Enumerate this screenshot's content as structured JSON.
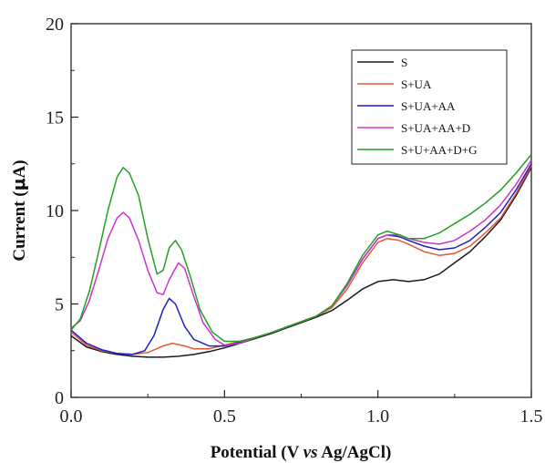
{
  "chart_data": {
    "type": "line",
    "xlabel_parts": [
      "Potential (V ",
      "vs",
      " Ag/AgCl)"
    ],
    "ylabel_parts": [
      "Current (",
      "μ",
      "A)"
    ],
    "xlim": [
      0,
      1.5
    ],
    "ylim": [
      0,
      20
    ],
    "xticks": [
      0.0,
      0.5,
      1.0,
      1.5
    ],
    "xtick_labels": [
      "0.0",
      "0.5",
      "1.0",
      "1.5"
    ],
    "yticks": [
      0,
      5,
      10,
      15,
      20
    ],
    "ytick_labels": [
      "0",
      "5",
      "10",
      "15",
      "20"
    ],
    "grid": false,
    "legend_position": "top-right",
    "series": [
      {
        "name": "S",
        "color": "#1a1a1a",
        "points": [
          [
            0,
            3.3
          ],
          [
            0.05,
            2.7
          ],
          [
            0.1,
            2.45
          ],
          [
            0.15,
            2.3
          ],
          [
            0.2,
            2.2
          ],
          [
            0.25,
            2.15
          ],
          [
            0.3,
            2.15
          ],
          [
            0.35,
            2.2
          ],
          [
            0.4,
            2.3
          ],
          [
            0.45,
            2.45
          ],
          [
            0.5,
            2.65
          ],
          [
            0.55,
            2.9
          ],
          [
            0.6,
            3.15
          ],
          [
            0.65,
            3.4
          ],
          [
            0.7,
            3.7
          ],
          [
            0.75,
            4.0
          ],
          [
            0.8,
            4.3
          ],
          [
            0.85,
            4.65
          ],
          [
            0.9,
            5.2
          ],
          [
            0.95,
            5.8
          ],
          [
            1.0,
            6.2
          ],
          [
            1.05,
            6.3
          ],
          [
            1.1,
            6.2
          ],
          [
            1.15,
            6.3
          ],
          [
            1.2,
            6.6
          ],
          [
            1.25,
            7.2
          ],
          [
            1.3,
            7.8
          ],
          [
            1.35,
            8.6
          ],
          [
            1.4,
            9.5
          ],
          [
            1.45,
            10.8
          ],
          [
            1.5,
            12.3
          ]
        ]
      },
      {
        "name": "S+UA",
        "color": "#e05a3a",
        "points": [
          [
            0,
            3.5
          ],
          [
            0.05,
            2.8
          ],
          [
            0.1,
            2.5
          ],
          [
            0.15,
            2.35
          ],
          [
            0.2,
            2.3
          ],
          [
            0.25,
            2.4
          ],
          [
            0.3,
            2.75
          ],
          [
            0.33,
            2.9
          ],
          [
            0.37,
            2.75
          ],
          [
            0.4,
            2.6
          ],
          [
            0.45,
            2.6
          ],
          [
            0.5,
            2.8
          ],
          [
            0.55,
            3.0
          ],
          [
            0.6,
            3.2
          ],
          [
            0.65,
            3.45
          ],
          [
            0.7,
            3.75
          ],
          [
            0.75,
            4.05
          ],
          [
            0.8,
            4.35
          ],
          [
            0.85,
            4.8
          ],
          [
            0.9,
            5.8
          ],
          [
            0.95,
            7.2
          ],
          [
            1.0,
            8.3
          ],
          [
            1.03,
            8.5
          ],
          [
            1.07,
            8.4
          ],
          [
            1.1,
            8.2
          ],
          [
            1.15,
            7.8
          ],
          [
            1.2,
            7.6
          ],
          [
            1.25,
            7.7
          ],
          [
            1.3,
            8.1
          ],
          [
            1.35,
            8.8
          ],
          [
            1.4,
            9.6
          ],
          [
            1.45,
            10.9
          ],
          [
            1.5,
            12.4
          ]
        ]
      },
      {
        "name": "S+UA+AA",
        "color": "#2020c0",
        "points": [
          [
            0,
            3.6
          ],
          [
            0.05,
            2.9
          ],
          [
            0.1,
            2.55
          ],
          [
            0.15,
            2.35
          ],
          [
            0.2,
            2.3
          ],
          [
            0.24,
            2.5
          ],
          [
            0.27,
            3.3
          ],
          [
            0.3,
            4.7
          ],
          [
            0.32,
            5.3
          ],
          [
            0.34,
            5.0
          ],
          [
            0.37,
            3.8
          ],
          [
            0.4,
            3.1
          ],
          [
            0.45,
            2.75
          ],
          [
            0.5,
            2.75
          ],
          [
            0.55,
            2.95
          ],
          [
            0.6,
            3.2
          ],
          [
            0.65,
            3.45
          ],
          [
            0.7,
            3.75
          ],
          [
            0.75,
            4.05
          ],
          [
            0.8,
            4.35
          ],
          [
            0.85,
            4.9
          ],
          [
            0.9,
            6.0
          ],
          [
            0.95,
            7.4
          ],
          [
            1.0,
            8.5
          ],
          [
            1.03,
            8.7
          ],
          [
            1.07,
            8.6
          ],
          [
            1.1,
            8.4
          ],
          [
            1.15,
            8.1
          ],
          [
            1.2,
            7.9
          ],
          [
            1.25,
            8.0
          ],
          [
            1.3,
            8.4
          ],
          [
            1.35,
            9.1
          ],
          [
            1.4,
            9.9
          ],
          [
            1.45,
            11.1
          ],
          [
            1.5,
            12.5
          ]
        ]
      },
      {
        "name": "S+UA+AA+D",
        "color": "#cc33cc",
        "points": [
          [
            0,
            3.7
          ],
          [
            0.03,
            4.1
          ],
          [
            0.06,
            5.2
          ],
          [
            0.09,
            6.8
          ],
          [
            0.12,
            8.5
          ],
          [
            0.15,
            9.6
          ],
          [
            0.17,
            9.9
          ],
          [
            0.19,
            9.6
          ],
          [
            0.22,
            8.4
          ],
          [
            0.25,
            6.8
          ],
          [
            0.28,
            5.6
          ],
          [
            0.3,
            5.5
          ],
          [
            0.32,
            6.3
          ],
          [
            0.35,
            7.2
          ],
          [
            0.37,
            6.9
          ],
          [
            0.4,
            5.4
          ],
          [
            0.43,
            4.0
          ],
          [
            0.47,
            3.1
          ],
          [
            0.5,
            2.8
          ],
          [
            0.55,
            2.9
          ],
          [
            0.6,
            3.2
          ],
          [
            0.65,
            3.45
          ],
          [
            0.7,
            3.75
          ],
          [
            0.75,
            4.05
          ],
          [
            0.8,
            4.35
          ],
          [
            0.85,
            4.9
          ],
          [
            0.9,
            6.0
          ],
          [
            0.95,
            7.4
          ],
          [
            1.0,
            8.5
          ],
          [
            1.03,
            8.7
          ],
          [
            1.07,
            8.7
          ],
          [
            1.1,
            8.5
          ],
          [
            1.15,
            8.3
          ],
          [
            1.2,
            8.2
          ],
          [
            1.25,
            8.4
          ],
          [
            1.3,
            8.9
          ],
          [
            1.35,
            9.5
          ],
          [
            1.4,
            10.3
          ],
          [
            1.45,
            11.4
          ],
          [
            1.5,
            12.7
          ]
        ]
      },
      {
        "name": "S+U+AA+D+G",
        "color": "#22a022",
        "points": [
          [
            0,
            3.6
          ],
          [
            0.03,
            4.2
          ],
          [
            0.06,
            5.7
          ],
          [
            0.09,
            7.8
          ],
          [
            0.12,
            10.0
          ],
          [
            0.15,
            11.8
          ],
          [
            0.17,
            12.3
          ],
          [
            0.19,
            12.0
          ],
          [
            0.22,
            10.8
          ],
          [
            0.25,
            8.5
          ],
          [
            0.28,
            6.6
          ],
          [
            0.3,
            6.8
          ],
          [
            0.32,
            8.0
          ],
          [
            0.34,
            8.4
          ],
          [
            0.36,
            7.9
          ],
          [
            0.39,
            6.4
          ],
          [
            0.42,
            4.7
          ],
          [
            0.46,
            3.5
          ],
          [
            0.5,
            3.0
          ],
          [
            0.55,
            3.0
          ],
          [
            0.6,
            3.2
          ],
          [
            0.65,
            3.45
          ],
          [
            0.7,
            3.75
          ],
          [
            0.75,
            4.05
          ],
          [
            0.8,
            4.35
          ],
          [
            0.85,
            4.9
          ],
          [
            0.9,
            6.1
          ],
          [
            0.95,
            7.6
          ],
          [
            1.0,
            8.7
          ],
          [
            1.03,
            8.9
          ],
          [
            1.07,
            8.7
          ],
          [
            1.1,
            8.5
          ],
          [
            1.15,
            8.5
          ],
          [
            1.2,
            8.8
          ],
          [
            1.25,
            9.3
          ],
          [
            1.3,
            9.8
          ],
          [
            1.35,
            10.4
          ],
          [
            1.4,
            11.1
          ],
          [
            1.45,
            12.0
          ],
          [
            1.5,
            13.0
          ]
        ]
      }
    ]
  }
}
